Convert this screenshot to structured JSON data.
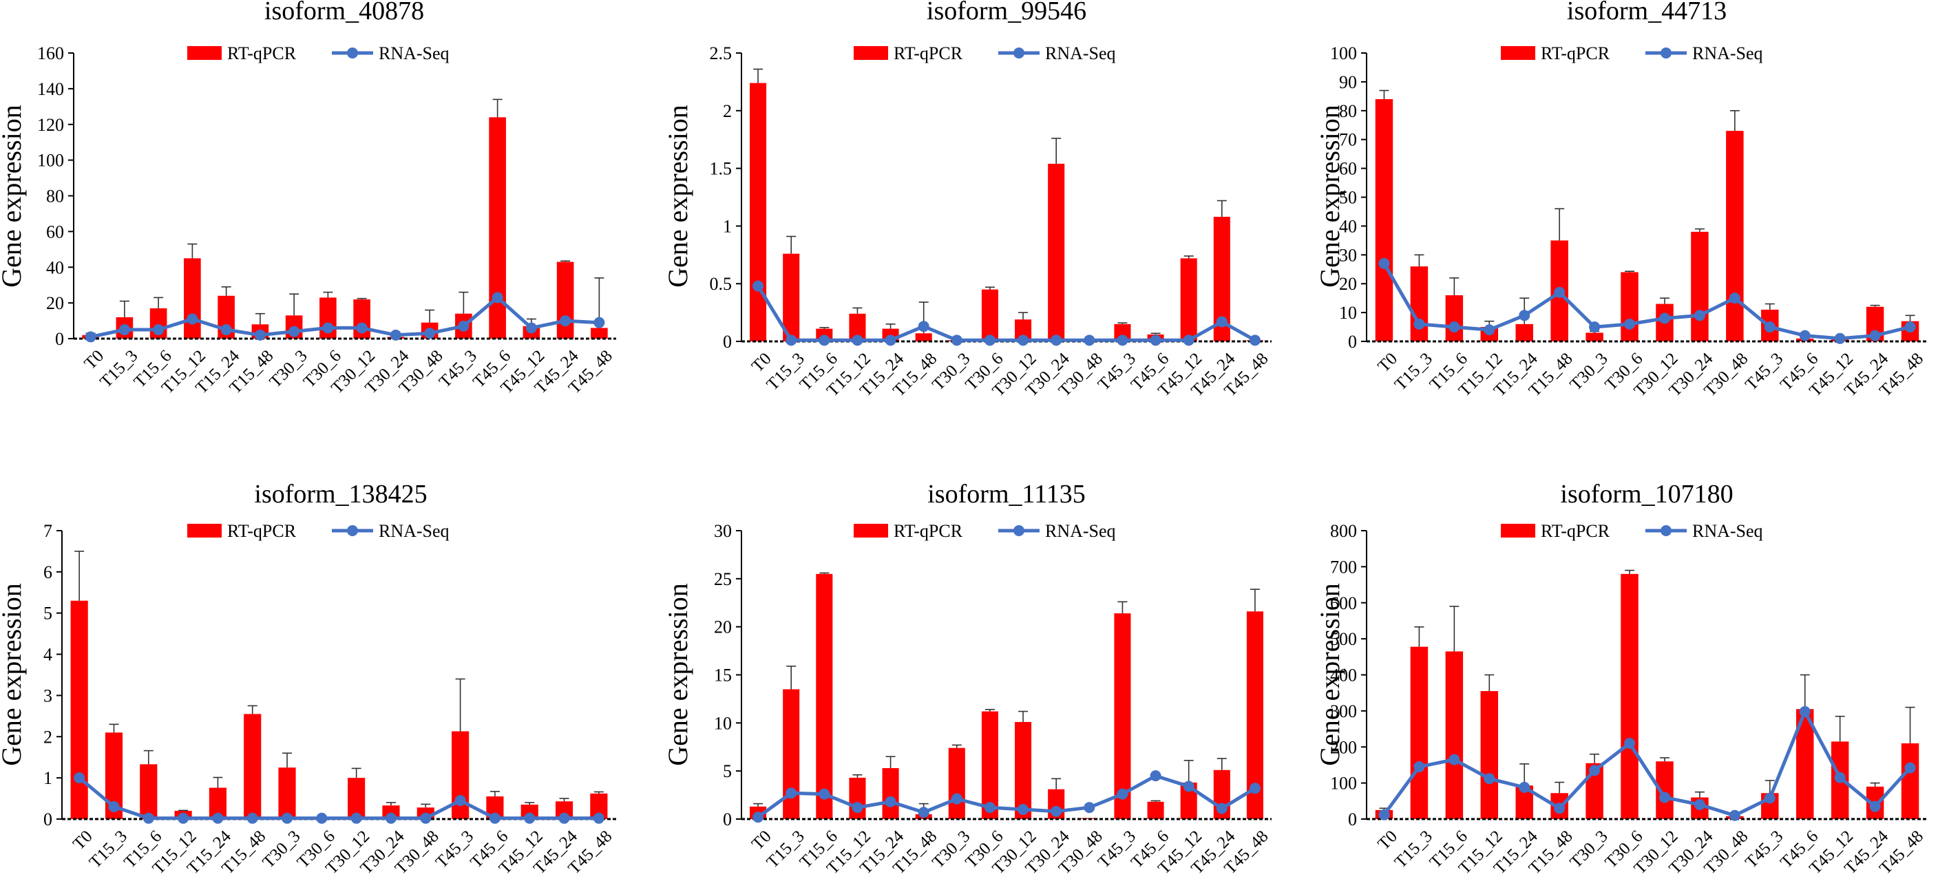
{
  "colors": {
    "rt_qpcr": "#ff0000",
    "rna_seq": "#4472c4",
    "axis": "#000000",
    "error": "#333333"
  },
  "categories": [
    "T0",
    "T15_3",
    "T15_6",
    "T15_12",
    "T15_24",
    "T15_48",
    "T30_3",
    "T30_6",
    "T30_12",
    "T30_24",
    "T30_48",
    "T45_3",
    "T45_6",
    "T45_12",
    "T45_24",
    "T45_48"
  ],
  "legend": {
    "bar_label": "RT-qPCR",
    "line_label": "RNA-Seq"
  },
  "chart_data": [
    {
      "type": "bar",
      "title": "isoform_40878",
      "ylabel": "Gene expression",
      "ylim": [
        0,
        160
      ],
      "yticks": [
        "0",
        "20",
        "40",
        "60",
        "80",
        "100",
        "120",
        "140",
        "160"
      ],
      "series": [
        {
          "name": "RT-qPCR",
          "kind": "bar",
          "values": [
            2,
            12,
            17,
            45,
            24,
            8,
            13,
            23,
            22,
            1,
            9,
            14,
            124,
            7,
            43,
            6
          ],
          "errors": [
            1,
            9,
            6,
            8,
            5,
            6,
            12,
            3,
            0.5,
            0.5,
            7,
            12,
            10,
            4,
            0.5,
            28
          ]
        },
        {
          "name": "RNA-Seq",
          "kind": "line",
          "values": [
            1,
            5,
            5,
            11,
            5,
            2,
            4,
            6,
            6,
            2,
            3,
            7,
            23,
            6,
            10,
            9
          ]
        }
      ]
    },
    {
      "type": "bar",
      "title": "isoform_99546",
      "ylabel": "Gene expression",
      "ylim": [
        0,
        2.5
      ],
      "yticks": [
        "0",
        "0.5",
        "1",
        "1.5",
        "2",
        "2.5"
      ],
      "series": [
        {
          "name": "RT-qPCR",
          "kind": "bar",
          "values": [
            2.24,
            0.76,
            0.11,
            0.24,
            0.11,
            0.07,
            0.01,
            0.45,
            0.19,
            1.54,
            0.01,
            0.15,
            0.06,
            0.72,
            1.08,
            0.01
          ],
          "errors": [
            0.12,
            0.15,
            0.01,
            0.05,
            0.04,
            0.27,
            0,
            0.02,
            0.06,
            0.22,
            0,
            0.01,
            0.01,
            0.02,
            0.14,
            0
          ]
        },
        {
          "name": "RNA-Seq",
          "kind": "line",
          "values": [
            0.48,
            0.01,
            0.01,
            0.01,
            0.01,
            0.13,
            0.01,
            0.01,
            0.01,
            0.01,
            0.01,
            0.01,
            0.01,
            0.01,
            0.17,
            0.01
          ]
        }
      ]
    },
    {
      "type": "bar",
      "title": "isoform_44713",
      "ylabel": "Gene expression",
      "ylim": [
        0,
        100
      ],
      "yticks": [
        "0",
        "10",
        "20",
        "30",
        "40",
        "50",
        "60",
        "70",
        "80",
        "90",
        "100"
      ],
      "series": [
        {
          "name": "RT-qPCR",
          "kind": "bar",
          "values": [
            84,
            26,
            16,
            5,
            6,
            35,
            3,
            24,
            13,
            38,
            73,
            11,
            1,
            1,
            12,
            7
          ],
          "errors": [
            3,
            4,
            6,
            2,
            9,
            11,
            0.5,
            0.3,
            2,
            1,
            7,
            2,
            0.2,
            0.2,
            0.5,
            2
          ]
        },
        {
          "name": "RNA-Seq",
          "kind": "line",
          "values": [
            27,
            6,
            5,
            4,
            9,
            17,
            5,
            6,
            8,
            9,
            15,
            5,
            2,
            1,
            2,
            5
          ]
        }
      ]
    },
    {
      "type": "bar",
      "title": "isoform_138425",
      "ylabel": "Gene expression",
      "ylim": [
        0,
        7
      ],
      "yticks": [
        "0",
        "1",
        "2",
        "3",
        "4",
        "5",
        "6",
        "7"
      ],
      "series": [
        {
          "name": "RT-qPCR",
          "kind": "bar",
          "values": [
            5.3,
            2.1,
            1.33,
            0.2,
            0.76,
            2.55,
            1.25,
            0.01,
            1.0,
            0.33,
            0.28,
            2.13,
            0.55,
            0.35,
            0.43,
            0.62
          ],
          "errors": [
            1.2,
            0.2,
            0.33,
            0.01,
            0.25,
            0.2,
            0.35,
            0,
            0.23,
            0.07,
            0.08,
            1.27,
            0.12,
            0.05,
            0.07,
            0.04
          ]
        },
        {
          "name": "RNA-Seq",
          "kind": "line",
          "values": [
            1.0,
            0.3,
            0.02,
            0.02,
            0.02,
            0.02,
            0.02,
            0.02,
            0.02,
            0.02,
            0.02,
            0.45,
            0.02,
            0.02,
            0.02,
            0.02
          ]
        }
      ]
    },
    {
      "type": "bar",
      "title": "isoform_11135",
      "ylabel": "Gene expression",
      "ylim": [
        0,
        30
      ],
      "yticks": [
        "0",
        "5",
        "10",
        "15",
        "20",
        "25",
        "30"
      ],
      "series": [
        {
          "name": "RT-qPCR",
          "kind": "bar",
          "values": [
            1.3,
            13.5,
            25.5,
            4.3,
            5.3,
            0.5,
            7.4,
            11.2,
            10.1,
            3.1,
            0.1,
            21.4,
            1.8,
            3.8,
            5.1,
            21.6
          ],
          "errors": [
            0.3,
            2.4,
            0.1,
            0.3,
            1.2,
            1.1,
            0.3,
            0.2,
            1.1,
            1.1,
            0,
            1.2,
            0.1,
            2.3,
            1.2,
            2.3
          ]
        },
        {
          "name": "RNA-Seq",
          "kind": "line",
          "values": [
            0.2,
            2.7,
            2.6,
            1.2,
            1.8,
            0.7,
            2.1,
            1.2,
            1.0,
            0.8,
            1.2,
            2.6,
            4.5,
            3.4,
            1.1,
            3.2
          ]
        }
      ]
    },
    {
      "type": "bar",
      "title": "isoform_107180",
      "ylabel": "Gene expression",
      "ylim": [
        0,
        800
      ],
      "yticks": [
        "0",
        "100",
        "200",
        "300",
        "400",
        "500",
        "600",
        "700",
        "800"
      ],
      "series": [
        {
          "name": "RT-qPCR",
          "kind": "bar",
          "values": [
            25,
            478,
            465,
            355,
            93,
            72,
            155,
            680,
            160,
            60,
            8,
            72,
            305,
            215,
            90,
            210
          ],
          "errors": [
            5,
            55,
            125,
            45,
            60,
            30,
            25,
            10,
            10,
            15,
            3,
            35,
            95,
            70,
            10,
            100
          ]
        },
        {
          "name": "RNA-Seq",
          "kind": "line",
          "values": [
            12,
            145,
            165,
            112,
            88,
            30,
            135,
            210,
            60,
            40,
            10,
            58,
            298,
            115,
            35,
            142
          ]
        }
      ]
    }
  ]
}
